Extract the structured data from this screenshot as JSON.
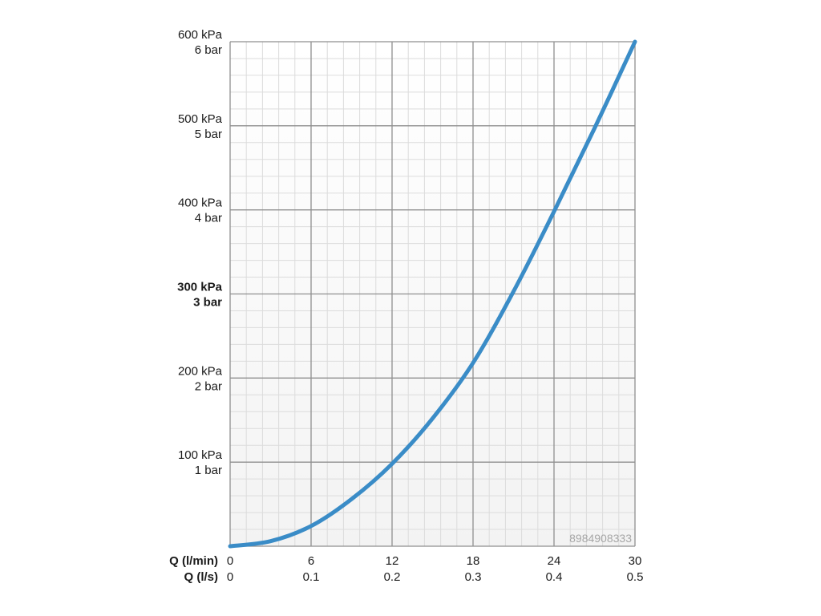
{
  "chart_data": {
    "type": "line",
    "title": "",
    "x_axes": [
      {
        "label": "Q (l/min)",
        "ticks": [
          0,
          6,
          12,
          18,
          24,
          30
        ],
        "tick_labels": [
          "0",
          "6",
          "12",
          "18",
          "24",
          "30"
        ],
        "range": [
          0,
          30
        ]
      },
      {
        "label": "Q (l/s)",
        "ticks": [
          0,
          0.1,
          0.2,
          0.3,
          0.4,
          0.5
        ],
        "tick_labels": [
          "0",
          "0.1",
          "0.2",
          "0.3",
          "0.4",
          "0.5"
        ],
        "range": [
          0,
          0.5
        ]
      }
    ],
    "y_axis": {
      "range": [
        0,
        600
      ],
      "ticks": [
        {
          "value": 100,
          "line1": "100 kPa",
          "line2": "1 bar",
          "bold": false
        },
        {
          "value": 200,
          "line1": "200 kPa",
          "line2": "2 bar",
          "bold": false
        },
        {
          "value": 300,
          "line1": "300 kPa",
          "line2": "3 bar",
          "bold": true
        },
        {
          "value": 400,
          "line1": "400 kPa",
          "line2": "4 bar",
          "bold": false
        },
        {
          "value": 500,
          "line1": "500 kPa",
          "line2": "5 bar",
          "bold": false
        },
        {
          "value": 600,
          "line1": "600 kPa",
          "line2": "6 bar",
          "bold": false
        }
      ]
    },
    "grid": true,
    "minor_grid_divisions": {
      "x": 5,
      "y": 5
    },
    "series": [
      {
        "color": "#3a8cc7",
        "points": [
          {
            "x": 0,
            "y": 0
          },
          {
            "x": 3,
            "y": 6
          },
          {
            "x": 6,
            "y": 24
          },
          {
            "x": 9,
            "y": 56
          },
          {
            "x": 12,
            "y": 98
          },
          {
            "x": 15,
            "y": 152
          },
          {
            "x": 18,
            "y": 218
          },
          {
            "x": 21,
            "y": 303
          },
          {
            "x": 24,
            "y": 398
          },
          {
            "x": 27,
            "y": 497
          },
          {
            "x": 30,
            "y": 600
          }
        ]
      }
    ],
    "watermark": "8984908333"
  }
}
